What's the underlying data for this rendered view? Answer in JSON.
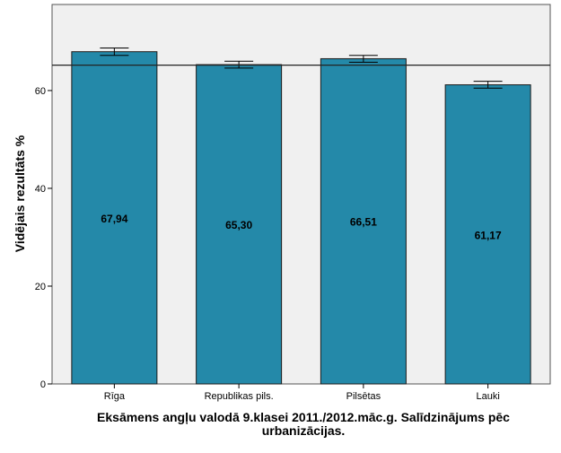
{
  "chart_data": {
    "type": "bar",
    "title": "Eksāmens angļu valodā 9.klasei 2011./2012.māc.g. Salīdzinājums pēc urbanizācijas.",
    "title_lines": [
      "Eksāmens angļu valodā 9.klasei 2011./2012.māc.g. Salīdzinājums pēc",
      "urbanizācijas."
    ],
    "xlabel": "",
    "ylabel": "Vidējais rezultāts %",
    "categories": [
      "Rīga",
      "Republikas pils.",
      "Pilsētas",
      "Lauki"
    ],
    "values": [
      67.94,
      65.3,
      66.51,
      61.17
    ],
    "data_labels": [
      "67,94",
      "65,30",
      "66,51",
      "61,17"
    ],
    "error_bars": [
      [
        67.2,
        68.7
      ],
      [
        64.6,
        66.0
      ],
      [
        65.8,
        67.2
      ],
      [
        60.5,
        61.9
      ]
    ],
    "reference_line": 65.2,
    "ylim": [
      0,
      77.6
    ],
    "yticks": [
      0,
      20,
      40,
      60
    ],
    "grid": false,
    "colors": {
      "bar": "#2489a9",
      "plot_bg": "#f0f0f0",
      "bar_edge": "#1a1a1a"
    }
  }
}
